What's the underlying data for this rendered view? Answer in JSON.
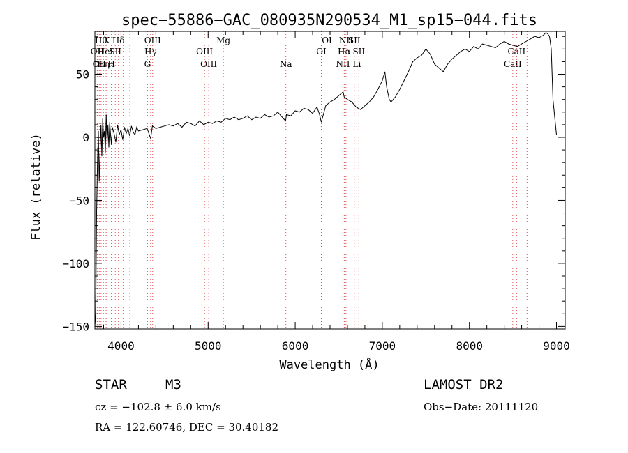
{
  "chart_data": {
    "type": "line",
    "title": "spec−55886−GAC_080935N290534_M1_sp15−044.fits",
    "xlabel": "Wavelength (Å)",
    "ylabel": "Flux (relative)",
    "xlim": [
      3700,
      9100
    ],
    "ylim": [
      -152,
      84
    ],
    "x_ticks": [
      4000,
      5000,
      6000,
      7000,
      8000,
      9000
    ],
    "x_tick_labels": [
      "4000",
      "5000",
      "6000",
      "7000",
      "8000",
      "9000"
    ],
    "y_ticks": [
      -150,
      -100,
      -50,
      0,
      50
    ],
    "y_tick_labels": [
      "−150",
      "−100",
      "−50",
      "0",
      "50"
    ],
    "grid": false,
    "series": [
      {
        "x": [
          3700,
          3710,
          3720,
          3730,
          3740,
          3750,
          3760,
          3770,
          3780,
          3790,
          3800,
          3810,
          3820,
          3830,
          3840,
          3850,
          3860,
          3870,
          3880,
          3890,
          3900,
          3920,
          3940,
          3960,
          3980,
          4000,
          4020,
          4040,
          4060,
          4080,
          4100,
          4120,
          4140,
          4160,
          4180,
          4200,
          4250,
          4300,
          4340,
          4360,
          4400,
          4450,
          4500,
          4550,
          4600,
          4650,
          4700,
          4750,
          4800,
          4850,
          4900,
          4950,
          5000,
          5050,
          5100,
          5150,
          5200,
          5250,
          5300,
          5350,
          5400,
          5450,
          5500,
          5550,
          5600,
          5650,
          5700,
          5750,
          5800,
          5850,
          5890,
          5900,
          5950,
          6000,
          6050,
          6100,
          6150,
          6200,
          6250,
          6280,
          6300,
          6350,
          6400,
          6450,
          6500,
          6550,
          6563,
          6600,
          6650,
          6700,
          6750,
          6800,
          6850,
          6900,
          6950,
          7000,
          7030,
          7050,
          7080,
          7100,
          7150,
          7200,
          7250,
          7300,
          7350,
          7400,
          7450,
          7500,
          7550,
          7600,
          7650,
          7700,
          7750,
          7800,
          7850,
          7900,
          7950,
          8000,
          8050,
          8100,
          8150,
          8200,
          8250,
          8300,
          8350,
          8400,
          8450,
          8500,
          8550,
          8600,
          8650,
          8700,
          8750,
          8800,
          8850,
          8880,
          8900,
          8920,
          8940,
          8960,
          9000
        ],
        "y": [
          -150,
          -140,
          -60,
          -20,
          5,
          -35,
          -10,
          10,
          -15,
          15,
          0,
          5,
          -12,
          18,
          -5,
          10,
          -8,
          12,
          2,
          -6,
          8,
          3,
          -4,
          10,
          2,
          6,
          -2,
          8,
          3,
          7,
          1,
          9,
          4,
          2,
          8,
          5,
          6,
          7,
          -1,
          9,
          7,
          8,
          9,
          10,
          9,
          11,
          8,
          12,
          11,
          9,
          13,
          10,
          12,
          11,
          13,
          12,
          15,
          14,
          16,
          14,
          15,
          17,
          14,
          16,
          15,
          18,
          16,
          17,
          20,
          16,
          13,
          18,
          17,
          21,
          20,
          23,
          22,
          19,
          24,
          18,
          12,
          25,
          28,
          30,
          33,
          36,
          32,
          30,
          28,
          24,
          22,
          25,
          28,
          32,
          38,
          45,
          52,
          40,
          30,
          28,
          32,
          38,
          45,
          52,
          60,
          63,
          65,
          70,
          66,
          58,
          55,
          52,
          58,
          62,
          65,
          68,
          70,
          68,
          72,
          70,
          74,
          73,
          72,
          71,
          74,
          76,
          74,
          73,
          72,
          74,
          76,
          78,
          80,
          79,
          81,
          83,
          82,
          80,
          70,
          30,
          2
        ]
      }
    ],
    "line_markers": [
      {
        "x": 3727,
        "label": "OII",
        "row": 1
      },
      {
        "x": 3750,
        "label": "OII",
        "row": 2
      },
      {
        "x": 3771,
        "label": "Hθ",
        "row": 0
      },
      {
        "x": 3798,
        "label": "Hη",
        "row": 2
      },
      {
        "x": 3820,
        "label": "HeI",
        "row": 1
      },
      {
        "x": 3835,
        "label": "K",
        "row": 0
      },
      {
        "x": 3889,
        "label": "H",
        "row": 2
      },
      {
        "x": 3934,
        "label": "SII",
        "row": 1
      },
      {
        "x": 3970,
        "label": "Hδ",
        "row": 0
      },
      {
        "x": 4026,
        "label": "",
        "row": 1
      },
      {
        "x": 4101,
        "label": "",
        "row": 0
      },
      {
        "x": 4340,
        "label": "Hγ",
        "row": 1
      },
      {
        "x": 4363,
        "label": "OIII",
        "row": 0
      },
      {
        "x": 4304,
        "label": "G",
        "row": 2
      },
      {
        "x": 4959,
        "label": "OIII",
        "row": 1
      },
      {
        "x": 5007,
        "label": "OIII",
        "row": 2
      },
      {
        "x": 5175,
        "label": "Mg",
        "row": 0
      },
      {
        "x": 5893,
        "label": "Na",
        "row": 2
      },
      {
        "x": 6300,
        "label": "OI",
        "row": 1
      },
      {
        "x": 6364,
        "label": "OI",
        "row": 0
      },
      {
        "x": 6548,
        "label": "NII",
        "row": 2
      },
      {
        "x": 6563,
        "label": "Hα",
        "row": 1
      },
      {
        "x": 6583,
        "label": "NII",
        "row": 0
      },
      {
        "x": 6678,
        "label": "SII",
        "row": 0
      },
      {
        "x": 6708,
        "label": "Li",
        "row": 2
      },
      {
        "x": 6731,
        "label": "SII",
        "row": 1
      },
      {
        "x": 8498,
        "label": "CaII",
        "row": 2
      },
      {
        "x": 8542,
        "label": "CaII",
        "row": 1
      },
      {
        "x": 8662,
        "label": "",
        "row": 1
      }
    ]
  },
  "info": {
    "class_label": "STAR",
    "subclass": "M3",
    "survey": "LAMOST DR2",
    "cz": "cz = −102.8 ± 6.0 km/s",
    "obs_date": "Obs−Date: 20111120",
    "coords": "RA = 122.60746, DEC =  30.40182"
  }
}
